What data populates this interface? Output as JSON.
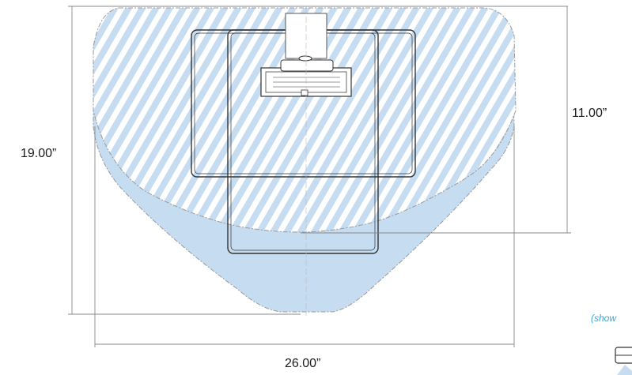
{
  "dimensions": {
    "total_height": "19.00”",
    "hatched_depth": "11.00”",
    "total_width": "26.00”"
  },
  "note": "(show",
  "colors": {
    "coverage_fill": "#c6dcf1",
    "hatch_fill": "#ffffff",
    "outline": "#9a9a9a",
    "device_stroke": "#333333",
    "dimension_line": "#888888",
    "note_text": "#3aa6d8"
  }
}
